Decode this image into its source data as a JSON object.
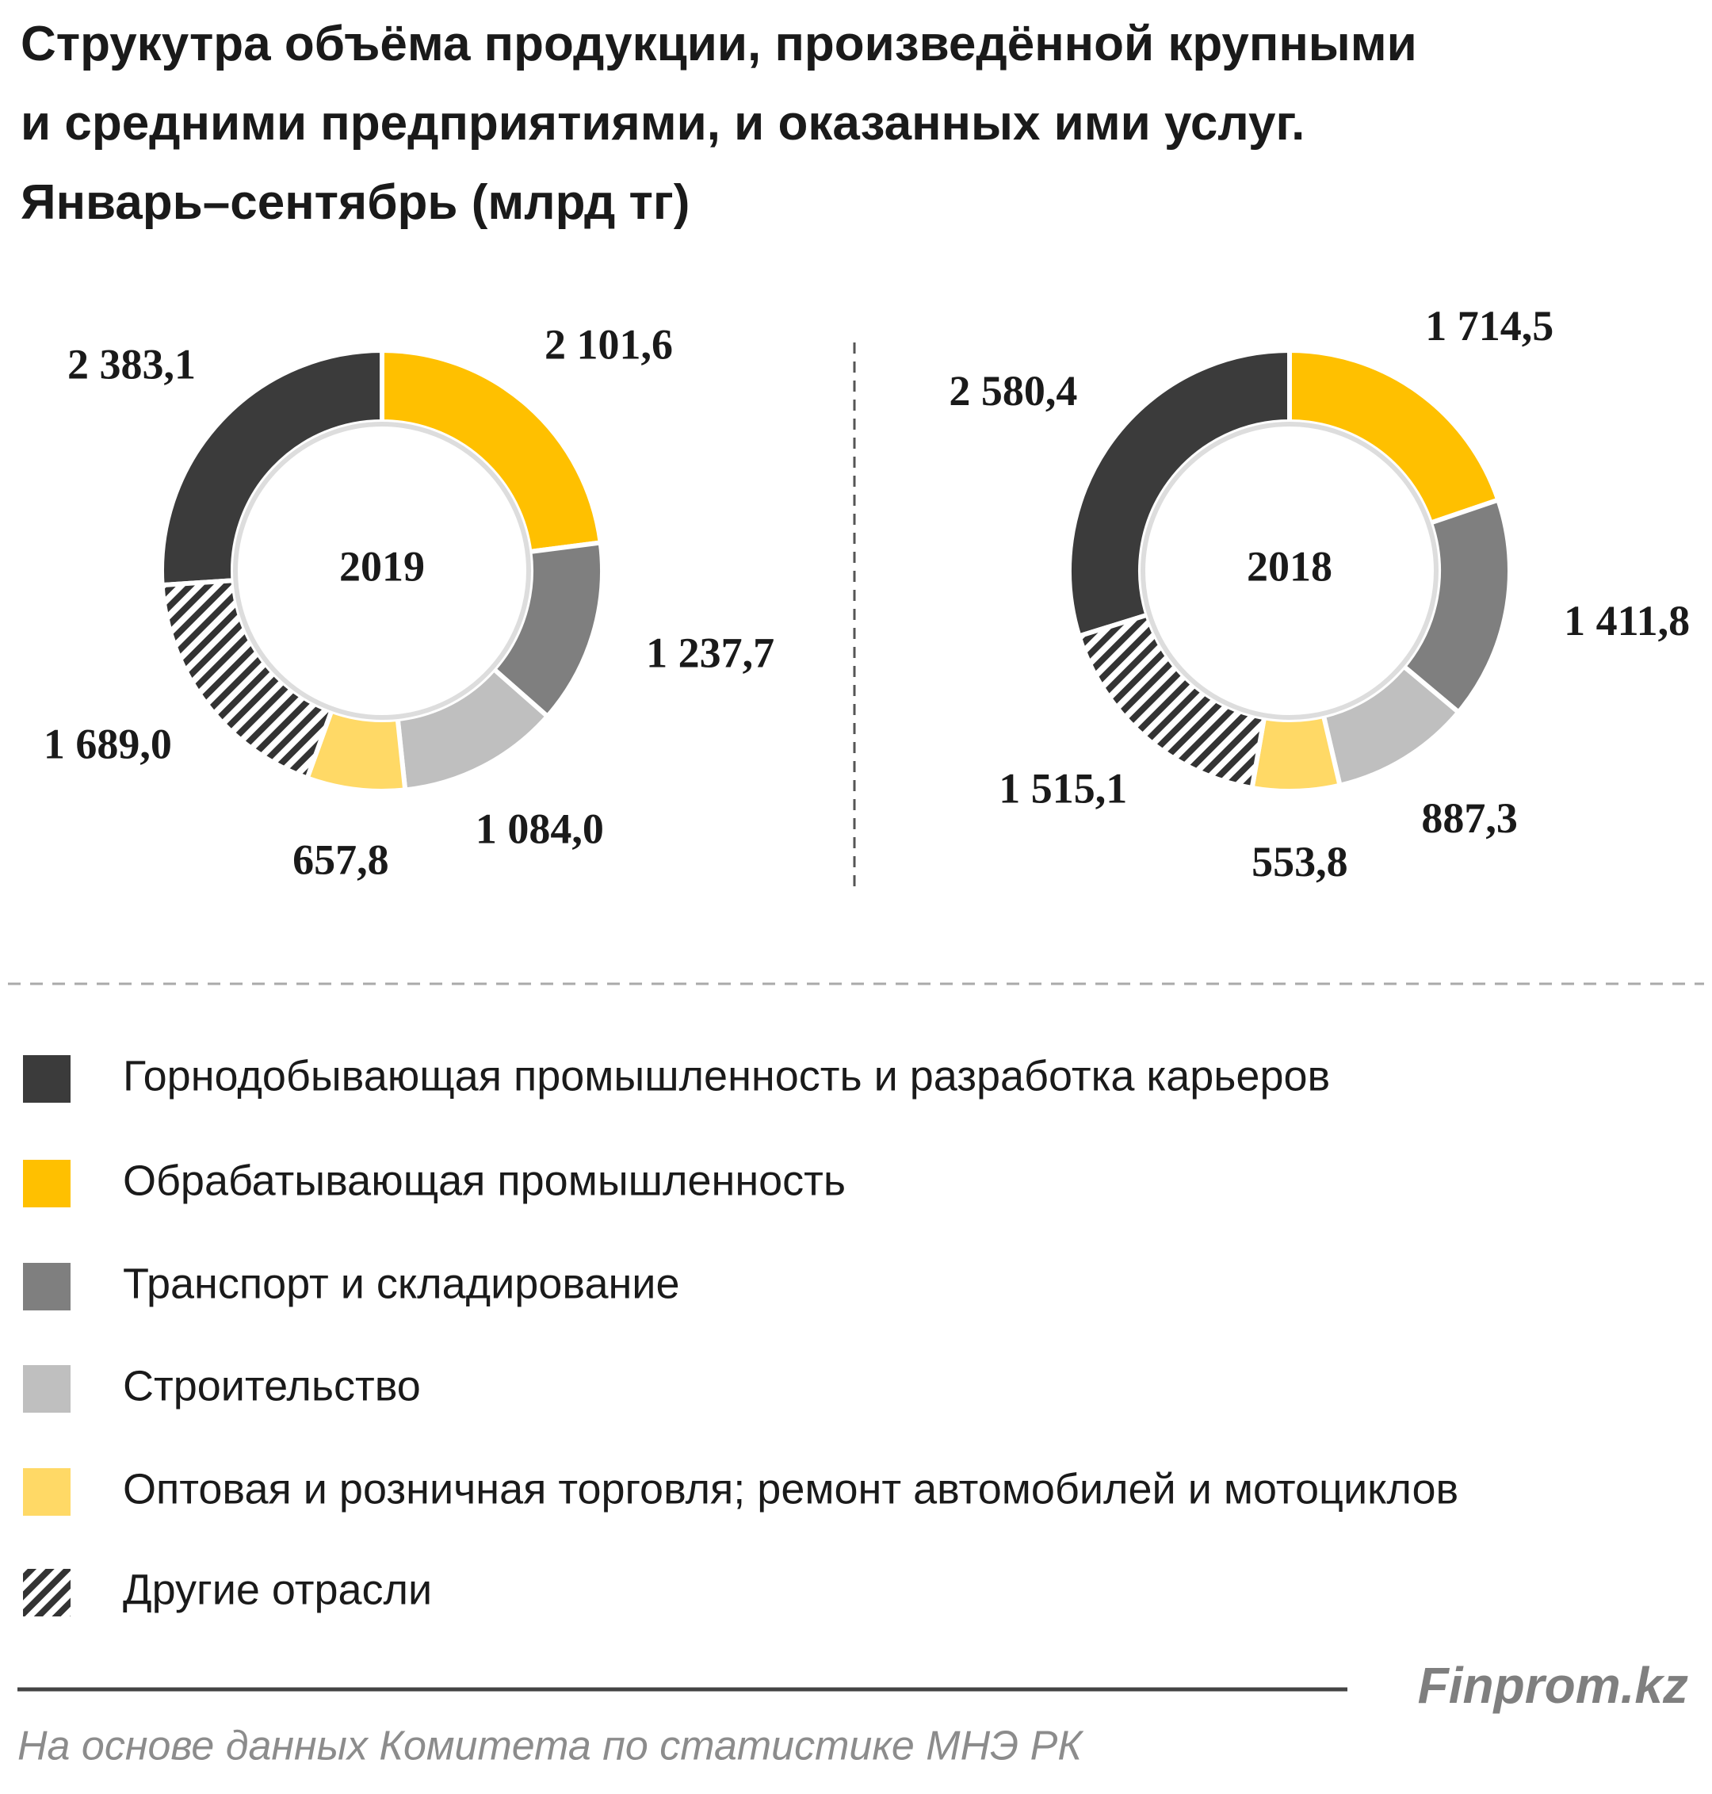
{
  "title": [
    "Струкутра объёма продукции, произведённой крупными",
    "и средними предприятиями, и оказанных ими услуг.",
    "Январь–сентябрь (млрд тг)"
  ],
  "categories": [
    "Горнодобывающая промышленность и разработка карьеров",
    "Обрабатывающая промышленность",
    "Транспорт и складирование",
    "Строительство",
    "Оптовая и розничная торговля; ремонт автомобилей и мотоциклов",
    "Другие отрасли"
  ],
  "colors": [
    "#3b3b3b",
    "#ffc000",
    "#7f7f7f",
    "#bfbfbf",
    "#ffd966",
    "#333333"
  ],
  "patterns": [
    "solid",
    "solid",
    "solid",
    "solid",
    "solid",
    "hatch"
  ],
  "chart_data": [
    {
      "type": "donut",
      "center_label": "2019",
      "values": [
        2383.1,
        2101.6,
        1237.7,
        1084.0,
        657.8,
        1689.0
      ],
      "value_labels": [
        "2 383,1",
        "2 101,6",
        "1 237,7",
        "1 084,0",
        "657,8",
        "1 689,0"
      ]
    },
    {
      "type": "donut",
      "center_label": "2018",
      "values": [
        2580.4,
        1714.5,
        1411.8,
        887.3,
        553.8,
        1515.1
      ],
      "value_labels": [
        "2 580,4",
        "1 714,5",
        "1 411,8",
        "887,3",
        "553,8",
        "1 515,1"
      ]
    }
  ],
  "brand": "Finprom.kz",
  "source": "На основе данных  Комитета по статистике МНЭ РК"
}
